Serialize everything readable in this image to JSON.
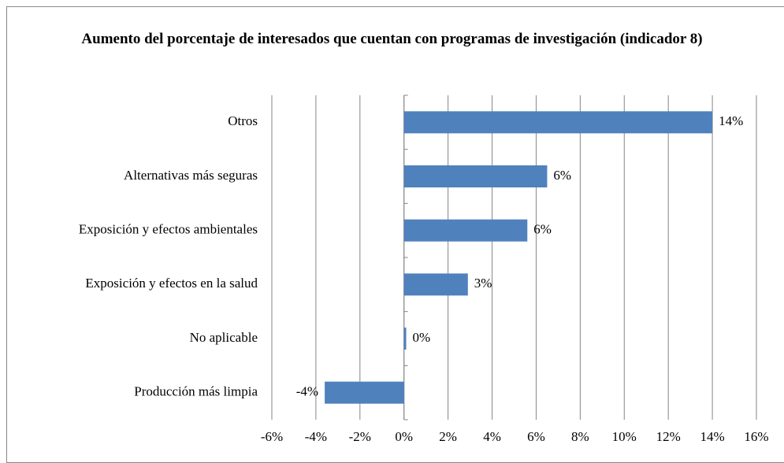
{
  "chart_data": {
    "type": "bar",
    "orientation": "horizontal",
    "title": "Aumento del porcentaje de interesados que cuentan con programas de investigación (indicador 8)",
    "categories": [
      "Otros",
      "Alternativas más seguras",
      "Exposición y efectos ambientales",
      "Exposición y efectos en la salud",
      "No aplicable",
      "Producción más limpia"
    ],
    "values": [
      14.0,
      6.5,
      5.6,
      2.9,
      0.1,
      -3.6
    ],
    "value_labels": [
      "14%",
      "6%",
      "6%",
      "3%",
      "0%",
      "-4%"
    ],
    "color": "#4f81bd",
    "xlim": [
      -6,
      16
    ],
    "xticks": [
      {
        "value": -6,
        "label": "-6%"
      },
      {
        "value": -4,
        "label": "-4%"
      },
      {
        "value": -2,
        "label": "-2%"
      },
      {
        "value": 0,
        "label": "0%"
      },
      {
        "value": 2,
        "label": "2%"
      },
      {
        "value": 4,
        "label": "4%"
      },
      {
        "value": 6,
        "label": "6%"
      },
      {
        "value": 8,
        "label": "8%"
      },
      {
        "value": 10,
        "label": "10%"
      },
      {
        "value": 12,
        "label": "12%"
      },
      {
        "value": 14,
        "label": "14%"
      },
      {
        "value": 16,
        "label": "16%"
      }
    ],
    "grid": true
  }
}
